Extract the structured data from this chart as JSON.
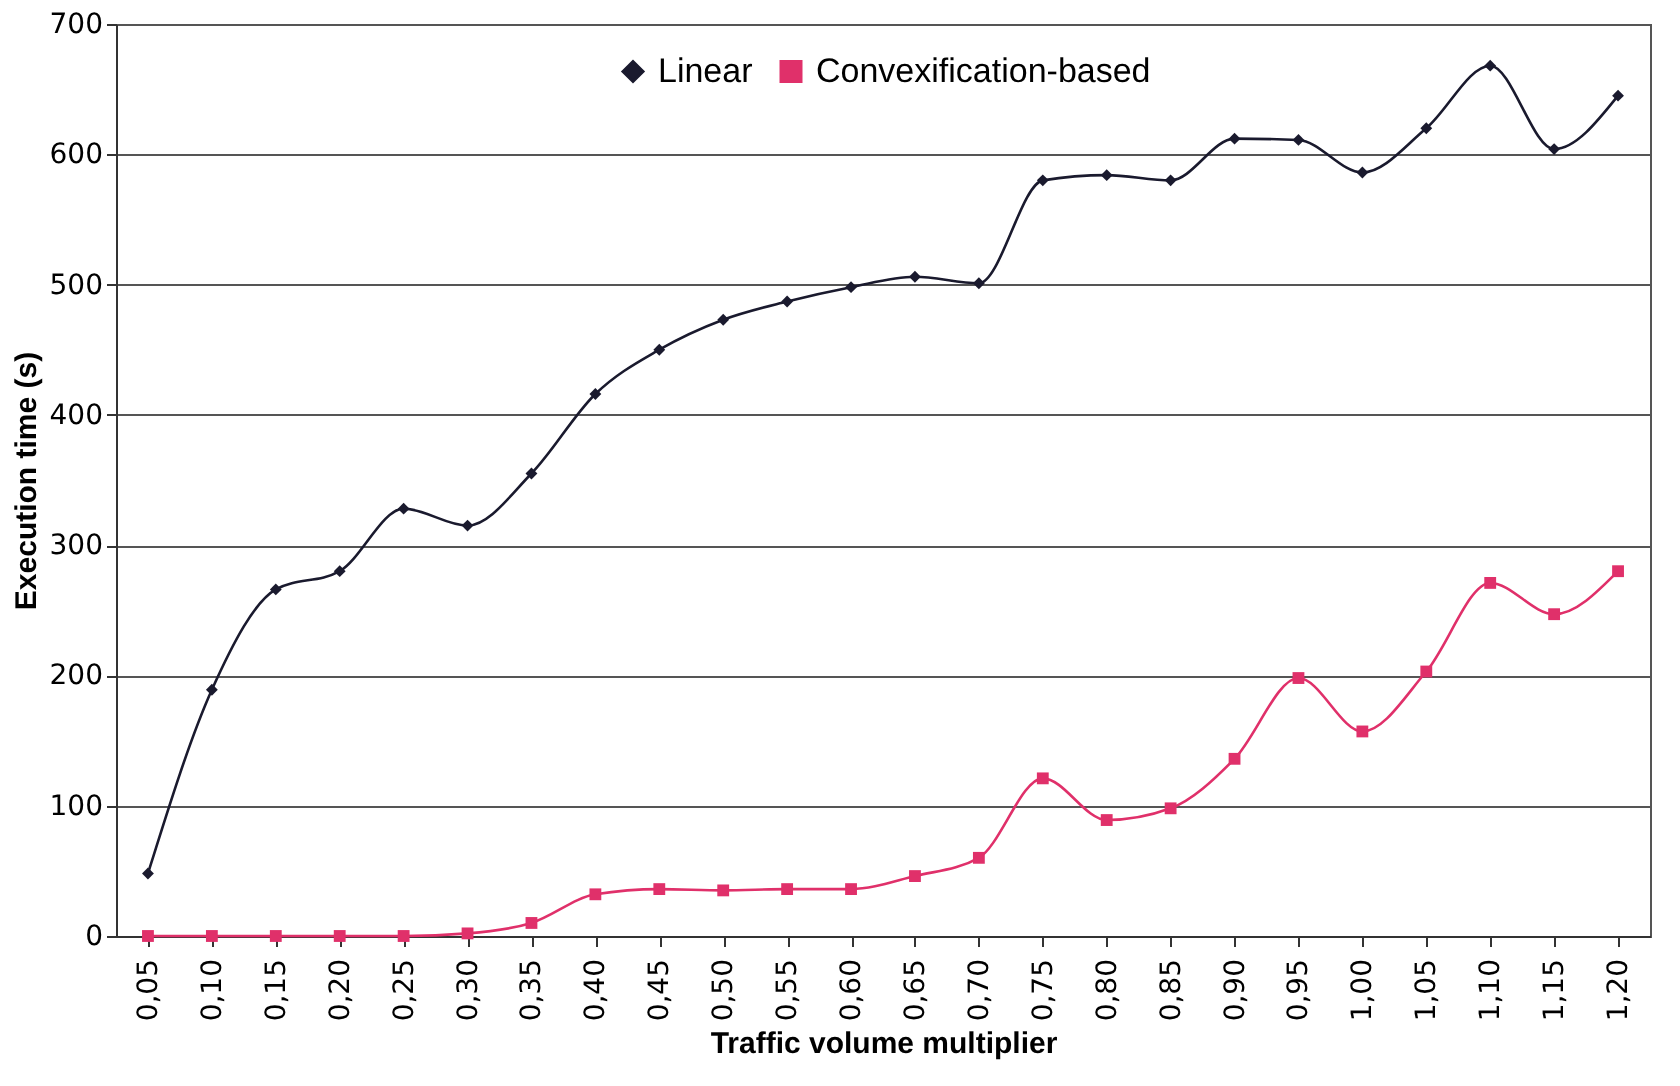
{
  "chart_data": {
    "type": "line",
    "xlabel": "Traffic volume multiplier",
    "ylabel": "Execution time (s)",
    "categories": [
      "0,05",
      "0,10",
      "0,15",
      "0,20",
      "0,25",
      "0,30",
      "0,35",
      "0,40",
      "0,45",
      "0,50",
      "0,55",
      "0,60",
      "0,65",
      "0,70",
      "0,75",
      "0,80",
      "0,85",
      "0,90",
      "0,95",
      "1,00",
      "1,05",
      "1,10",
      "1,15",
      "1,20"
    ],
    "series": [
      {
        "name": "Linear",
        "color": "#1a1a2e",
        "marker": "diamond",
        "values": [
          48,
          189,
          266,
          280,
          328,
          315,
          355,
          416,
          450,
          473,
          487,
          498,
          506,
          501,
          580,
          584,
          580,
          612,
          611,
          586,
          620,
          668,
          604,
          645
        ]
      },
      {
        "name": "Convexification-based",
        "color": "#e0306a",
        "marker": "square",
        "values": [
          0,
          0,
          0,
          0,
          0,
          2,
          10,
          32,
          36,
          35,
          36,
          36,
          46,
          60,
          121,
          89,
          98,
          136,
          198,
          157,
          203,
          271,
          247,
          280
        ]
      }
    ],
    "ylim": [
      0,
      700
    ],
    "yticks": [
      0,
      100,
      200,
      300,
      400,
      500,
      600,
      700
    ],
    "grid": "y",
    "legend": "top"
  }
}
